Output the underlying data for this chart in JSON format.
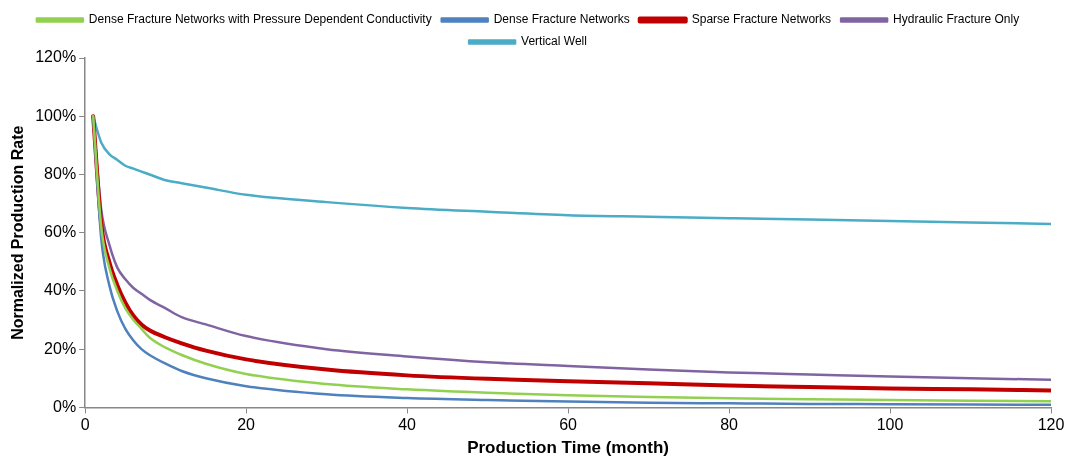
{
  "chart_data": {
    "type": "line",
    "xlabel": "Production Time (month)",
    "ylabel": "Normalized Production Rate",
    "x": [
      1,
      2,
      3,
      4,
      5,
      6,
      7,
      8,
      10,
      12,
      15,
      20,
      30,
      40,
      50,
      60,
      70,
      80,
      90,
      100,
      110,
      120
    ],
    "series": [
      {
        "name": "Vertical Well",
        "color": "#4bacc6",
        "values": [
          100,
          91,
          87,
          85,
          83,
          82,
          81,
          80,
          78,
          77,
          75.5,
          73,
          70.5,
          68.5,
          67.2,
          66,
          65.5,
          65,
          64.5,
          64,
          63.5,
          63
        ]
      },
      {
        "name": "Hydraulic Fracture Only",
        "color": "#8064a2",
        "values": [
          100,
          68,
          56,
          48,
          44,
          41,
          39,
          37,
          34,
          31,
          28.5,
          24.5,
          20,
          17.5,
          15.5,
          14.2,
          13,
          12,
          11.3,
          10.6,
          10,
          9.5
        ]
      },
      {
        "name": "Sparse Fracture Networks",
        "color": "#c00000",
        "values": [
          100,
          63,
          50,
          42,
          36,
          31.5,
          28.5,
          26.5,
          24,
          22,
          19.5,
          16.5,
          13,
          11,
          9.8,
          9,
          8.3,
          7.5,
          7,
          6.5,
          6.2,
          5.8
        ]
      },
      {
        "name": "Dense Fracture Networks",
        "color": "#4f81bd",
        "values": [
          100,
          58,
          42,
          33,
          27,
          23,
          20,
          18,
          15,
          12.5,
          10,
          7.3,
          4.5,
          3.2,
          2.5,
          2,
          1.6,
          1.4,
          1.2,
          1.1,
          1,
          0.9
        ]
      },
      {
        "name": "Dense Fracture Networks with Pressure Dependent Conductivity",
        "color": "#92d050",
        "values": [
          100,
          62,
          48,
          40,
          34,
          30,
          27,
          24,
          20.5,
          18,
          15,
          11.5,
          8,
          6.2,
          5,
          4.2,
          3.6,
          3.1,
          2.8,
          2.5,
          2.3,
          2.1
        ]
      }
    ],
    "xlim": [
      0,
      120
    ],
    "xticks": [
      0,
      20,
      40,
      60,
      80,
      100,
      120
    ],
    "ylim": [
      0,
      120
    ],
    "yticks": [
      {
        "value": 0,
        "label": "0%"
      },
      {
        "value": 20,
        "label": "20%"
      },
      {
        "value": 40,
        "label": "40%"
      },
      {
        "value": 60,
        "label": "60%"
      },
      {
        "value": 80,
        "label": "80%"
      },
      {
        "value": 100,
        "label": "100%"
      },
      {
        "value": 120,
        "label": "120%"
      }
    ],
    "grid": false,
    "legend": "top",
    "marker": "none",
    "line_style": "solid"
  }
}
